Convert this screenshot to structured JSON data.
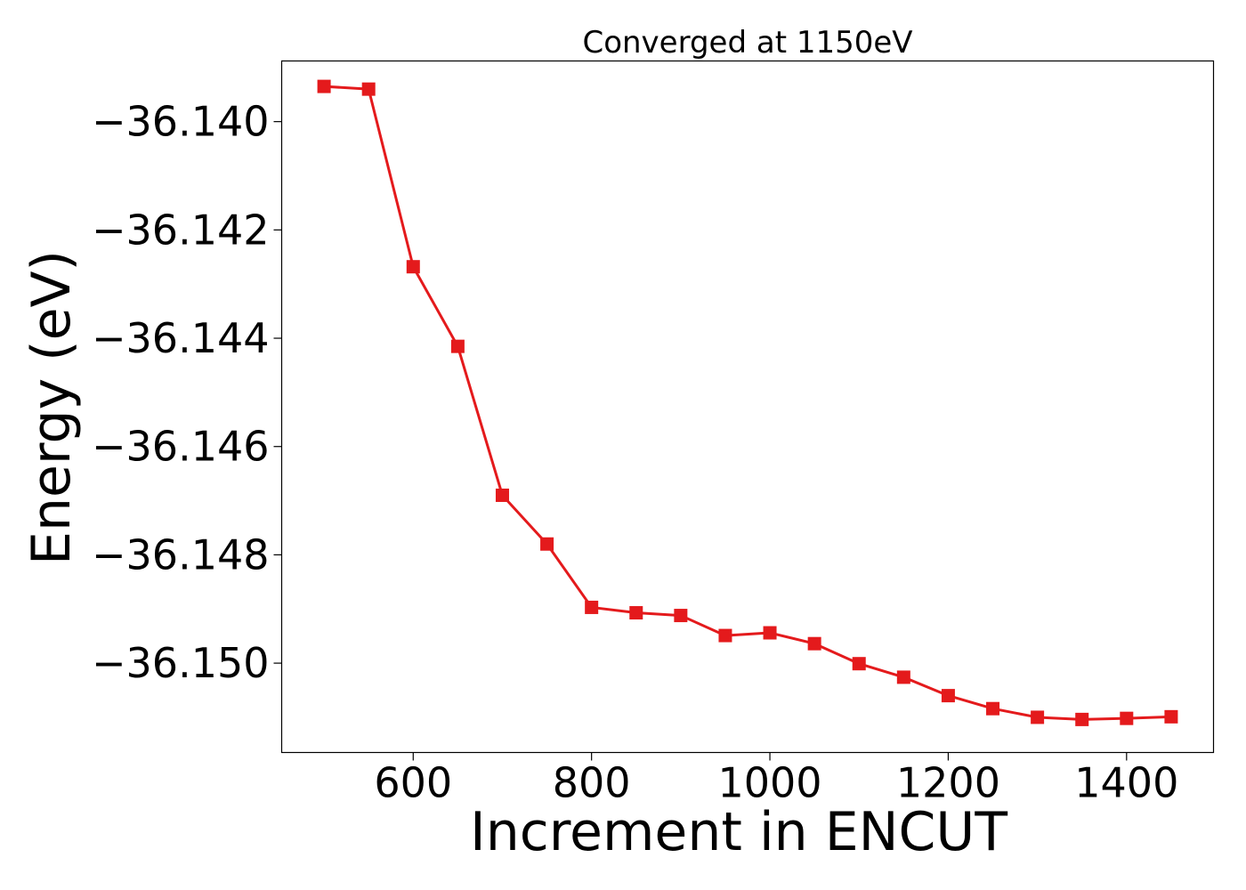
{
  "chart_data": {
    "type": "line",
    "title": "Converged at 1150eV",
    "xlabel": "Increment in ENCUT",
    "ylabel": "Energy (eV)",
    "xlim": [
      452.5,
      1497.5
    ],
    "ylim": [
      -36.15165,
      -36.13888
    ],
    "xticks": [
      600,
      800,
      1000,
      1200,
      1400
    ],
    "xtick_labels": [
      "600",
      "800",
      "1000",
      "1200",
      "1400"
    ],
    "yticks": [
      -36.14,
      -36.142,
      -36.144,
      -36.146,
      -36.148,
      -36.15
    ],
    "ytick_labels": [
      "−36.140",
      "−36.142",
      "−36.144",
      "−36.146",
      "−36.148",
      "−36.150"
    ],
    "grid": false,
    "legend": "none",
    "series": [
      {
        "color": "#e41a1c",
        "marker": "square",
        "x": [
          500,
          550,
          600,
          650,
          700,
          750,
          800,
          850,
          900,
          950,
          1000,
          1050,
          1100,
          1150,
          1200,
          1250,
          1300,
          1350,
          1400,
          1450
        ],
        "y": [
          -36.13935,
          -36.1394,
          -36.14268,
          -36.14415,
          -36.1469,
          -36.1478,
          -36.14897,
          -36.14907,
          -36.14912,
          -36.14949,
          -36.14944,
          -36.14964,
          -36.15001,
          -36.15026,
          -36.1506,
          -36.15084,
          -36.151,
          -36.15104,
          -36.15102,
          -36.15099
        ]
      }
    ]
  }
}
